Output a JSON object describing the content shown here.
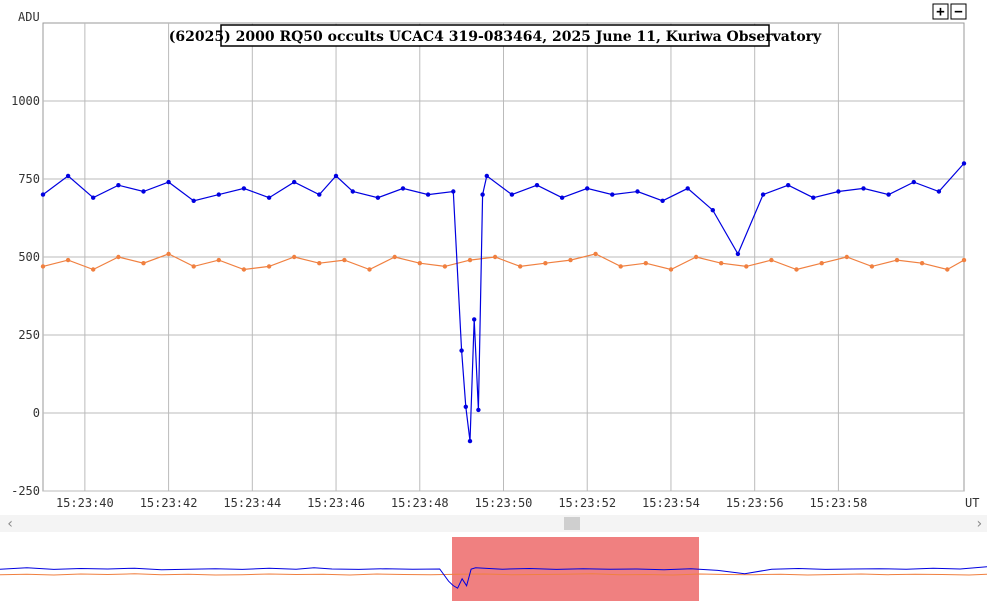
{
  "chart_data": {
    "type": "line",
    "title": "(62025) 2000 RQ50 occults UCAC4 319-083464, 2025 June 11, Kuriwa Observatory",
    "ylabel": "ADU",
    "xlabel": "UT",
    "ylim": [
      -250,
      1250
    ],
    "y_ticks": [
      {
        "value": -250,
        "label": "-250"
      },
      {
        "value": 0,
        "label": "0"
      },
      {
        "value": 250,
        "label": "250"
      },
      {
        "value": 500,
        "label": "500"
      },
      {
        "value": 750,
        "label": "750"
      },
      {
        "value": 1000,
        "label": "1000"
      }
    ],
    "xlim_seconds": [
      39.0,
      61.0
    ],
    "x_ticks": [
      {
        "value": 40,
        "label": "15:23:40"
      },
      {
        "value": 42,
        "label": "15:23:42"
      },
      {
        "value": 44,
        "label": "15:23:44"
      },
      {
        "value": 46,
        "label": "15:23:46"
      },
      {
        "value": 48,
        "label": "15:23:48"
      },
      {
        "value": 50,
        "label": "15:23:50"
      },
      {
        "value": 52,
        "label": "15:23:52"
      },
      {
        "value": 54,
        "label": "15:23:54"
      },
      {
        "value": 56,
        "label": "15:23:56"
      },
      {
        "value": 58,
        "label": "15:23:58"
      }
    ],
    "grid": true,
    "series": [
      {
        "color": "#0000e0",
        "x": [
          39.0,
          39.6,
          40.2,
          40.8,
          41.4,
          42.0,
          42.6,
          43.2,
          43.8,
          44.4,
          45.0,
          45.6,
          46.0,
          46.4,
          47.0,
          47.6,
          48.2,
          48.8,
          49.0,
          49.1,
          49.2,
          49.3,
          49.4,
          49.5,
          49.6,
          50.2,
          50.8,
          51.4,
          52.0,
          52.6,
          53.2,
          53.8,
          54.4,
          55.0,
          55.6,
          56.2,
          56.8,
          57.4,
          58.0,
          58.6,
          59.2,
          59.8,
          60.4,
          61.0
        ],
        "y": [
          700,
          760,
          690,
          730,
          710,
          740,
          680,
          700,
          720,
          690,
          740,
          700,
          760,
          710,
          690,
          720,
          700,
          710,
          200,
          20,
          -90,
          300,
          10,
          700,
          760,
          700,
          730,
          690,
          720,
          700,
          710,
          680,
          720,
          650,
          510,
          700,
          730,
          690,
          710,
          720,
          700,
          740,
          710,
          800
        ]
      },
      {
        "color": "#f08040",
        "x": [
          39.0,
          39.6,
          40.2,
          40.8,
          41.4,
          42.0,
          42.6,
          43.2,
          43.8,
          44.4,
          45.0,
          45.6,
          46.2,
          46.8,
          47.4,
          48.0,
          48.6,
          49.2,
          49.8,
          50.4,
          51.0,
          51.6,
          52.2,
          52.8,
          53.4,
          54.0,
          54.6,
          55.2,
          55.8,
          56.4,
          57.0,
          57.6,
          58.2,
          58.8,
          59.4,
          60.0,
          60.6,
          61.0
        ],
        "y": [
          470,
          490,
          460,
          500,
          480,
          510,
          470,
          490,
          460,
          470,
          500,
          480,
          490,
          460,
          500,
          480,
          470,
          490,
          500,
          470,
          480,
          490,
          510,
          470,
          480,
          460,
          500,
          480,
          470,
          490,
          460,
          480,
          500,
          470,
          490,
          480,
          460,
          490
        ]
      }
    ]
  },
  "controls": {
    "zoom_in_label": "+",
    "zoom_out_label": "−",
    "scroll_left_label": "‹",
    "scroll_right_label": "›"
  }
}
